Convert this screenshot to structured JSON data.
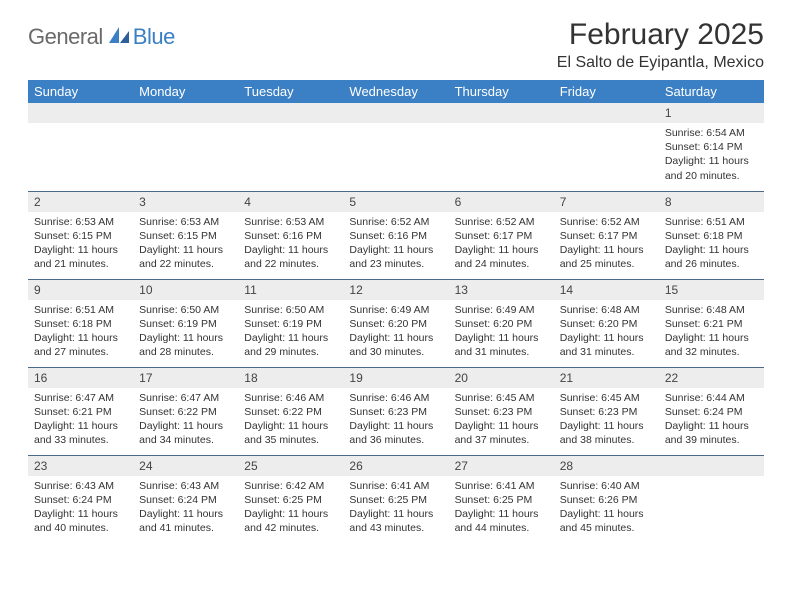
{
  "logo": {
    "text1": "General",
    "text2": "Blue"
  },
  "header": {
    "month_title": "February 2025",
    "location": "El Salto de Eyipantla, Mexico"
  },
  "colors": {
    "header_bg": "#3b7fc4",
    "header_text": "#ffffff",
    "daynum_bg": "#ededed",
    "row_border": "#4a6a8a",
    "logo_gray": "#6a6a6a",
    "logo_blue": "#3b7fc4",
    "body_text": "#333333",
    "page_bg": "#ffffff"
  },
  "typography": {
    "month_title_fontsize": 30,
    "location_fontsize": 16,
    "dayheader_fontsize": 13,
    "daynum_fontsize": 12,
    "body_fontsize": 10.5,
    "logo_fontsize": 22
  },
  "calendar": {
    "type": "table",
    "day_headers": [
      "Sunday",
      "Monday",
      "Tuesday",
      "Wednesday",
      "Thursday",
      "Friday",
      "Saturday"
    ],
    "weeks": [
      [
        {
          "empty": true
        },
        {
          "empty": true
        },
        {
          "empty": true
        },
        {
          "empty": true
        },
        {
          "empty": true
        },
        {
          "empty": true
        },
        {
          "num": "1",
          "sunrise": "Sunrise: 6:54 AM",
          "sunset": "Sunset: 6:14 PM",
          "daylight": "Daylight: 11 hours and 20 minutes."
        }
      ],
      [
        {
          "num": "2",
          "sunrise": "Sunrise: 6:53 AM",
          "sunset": "Sunset: 6:15 PM",
          "daylight": "Daylight: 11 hours and 21 minutes."
        },
        {
          "num": "3",
          "sunrise": "Sunrise: 6:53 AM",
          "sunset": "Sunset: 6:15 PM",
          "daylight": "Daylight: 11 hours and 22 minutes."
        },
        {
          "num": "4",
          "sunrise": "Sunrise: 6:53 AM",
          "sunset": "Sunset: 6:16 PM",
          "daylight": "Daylight: 11 hours and 22 minutes."
        },
        {
          "num": "5",
          "sunrise": "Sunrise: 6:52 AM",
          "sunset": "Sunset: 6:16 PM",
          "daylight": "Daylight: 11 hours and 23 minutes."
        },
        {
          "num": "6",
          "sunrise": "Sunrise: 6:52 AM",
          "sunset": "Sunset: 6:17 PM",
          "daylight": "Daylight: 11 hours and 24 minutes."
        },
        {
          "num": "7",
          "sunrise": "Sunrise: 6:52 AM",
          "sunset": "Sunset: 6:17 PM",
          "daylight": "Daylight: 11 hours and 25 minutes."
        },
        {
          "num": "8",
          "sunrise": "Sunrise: 6:51 AM",
          "sunset": "Sunset: 6:18 PM",
          "daylight": "Daylight: 11 hours and 26 minutes."
        }
      ],
      [
        {
          "num": "9",
          "sunrise": "Sunrise: 6:51 AM",
          "sunset": "Sunset: 6:18 PM",
          "daylight": "Daylight: 11 hours and 27 minutes."
        },
        {
          "num": "10",
          "sunrise": "Sunrise: 6:50 AM",
          "sunset": "Sunset: 6:19 PM",
          "daylight": "Daylight: 11 hours and 28 minutes."
        },
        {
          "num": "11",
          "sunrise": "Sunrise: 6:50 AM",
          "sunset": "Sunset: 6:19 PM",
          "daylight": "Daylight: 11 hours and 29 minutes."
        },
        {
          "num": "12",
          "sunrise": "Sunrise: 6:49 AM",
          "sunset": "Sunset: 6:20 PM",
          "daylight": "Daylight: 11 hours and 30 minutes."
        },
        {
          "num": "13",
          "sunrise": "Sunrise: 6:49 AM",
          "sunset": "Sunset: 6:20 PM",
          "daylight": "Daylight: 11 hours and 31 minutes."
        },
        {
          "num": "14",
          "sunrise": "Sunrise: 6:48 AM",
          "sunset": "Sunset: 6:20 PM",
          "daylight": "Daylight: 11 hours and 31 minutes."
        },
        {
          "num": "15",
          "sunrise": "Sunrise: 6:48 AM",
          "sunset": "Sunset: 6:21 PM",
          "daylight": "Daylight: 11 hours and 32 minutes."
        }
      ],
      [
        {
          "num": "16",
          "sunrise": "Sunrise: 6:47 AM",
          "sunset": "Sunset: 6:21 PM",
          "daylight": "Daylight: 11 hours and 33 minutes."
        },
        {
          "num": "17",
          "sunrise": "Sunrise: 6:47 AM",
          "sunset": "Sunset: 6:22 PM",
          "daylight": "Daylight: 11 hours and 34 minutes."
        },
        {
          "num": "18",
          "sunrise": "Sunrise: 6:46 AM",
          "sunset": "Sunset: 6:22 PM",
          "daylight": "Daylight: 11 hours and 35 minutes."
        },
        {
          "num": "19",
          "sunrise": "Sunrise: 6:46 AM",
          "sunset": "Sunset: 6:23 PM",
          "daylight": "Daylight: 11 hours and 36 minutes."
        },
        {
          "num": "20",
          "sunrise": "Sunrise: 6:45 AM",
          "sunset": "Sunset: 6:23 PM",
          "daylight": "Daylight: 11 hours and 37 minutes."
        },
        {
          "num": "21",
          "sunrise": "Sunrise: 6:45 AM",
          "sunset": "Sunset: 6:23 PM",
          "daylight": "Daylight: 11 hours and 38 minutes."
        },
        {
          "num": "22",
          "sunrise": "Sunrise: 6:44 AM",
          "sunset": "Sunset: 6:24 PM",
          "daylight": "Daylight: 11 hours and 39 minutes."
        }
      ],
      [
        {
          "num": "23",
          "sunrise": "Sunrise: 6:43 AM",
          "sunset": "Sunset: 6:24 PM",
          "daylight": "Daylight: 11 hours and 40 minutes."
        },
        {
          "num": "24",
          "sunrise": "Sunrise: 6:43 AM",
          "sunset": "Sunset: 6:24 PM",
          "daylight": "Daylight: 11 hours and 41 minutes."
        },
        {
          "num": "25",
          "sunrise": "Sunrise: 6:42 AM",
          "sunset": "Sunset: 6:25 PM",
          "daylight": "Daylight: 11 hours and 42 minutes."
        },
        {
          "num": "26",
          "sunrise": "Sunrise: 6:41 AM",
          "sunset": "Sunset: 6:25 PM",
          "daylight": "Daylight: 11 hours and 43 minutes."
        },
        {
          "num": "27",
          "sunrise": "Sunrise: 6:41 AM",
          "sunset": "Sunset: 6:25 PM",
          "daylight": "Daylight: 11 hours and 44 minutes."
        },
        {
          "num": "28",
          "sunrise": "Sunrise: 6:40 AM",
          "sunset": "Sunset: 6:26 PM",
          "daylight": "Daylight: 11 hours and 45 minutes."
        },
        {
          "empty": true
        }
      ]
    ]
  }
}
